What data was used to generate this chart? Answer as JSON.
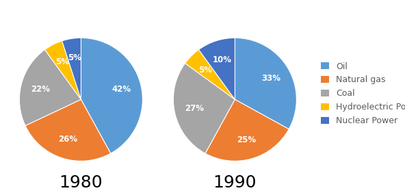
{
  "chart1_year": "1980",
  "chart2_year": "1990",
  "categories": [
    "Oil",
    "Natural gas",
    "Coal",
    "Hydroelectric Power",
    "Nuclear Power"
  ],
  "values_1980": [
    42,
    26,
    22,
    5,
    5
  ],
  "values_1990": [
    33,
    25,
    27,
    5,
    10
  ],
  "colors": [
    "#5B9BD5",
    "#ED7D31",
    "#A5A5A5",
    "#FFC000",
    "#4472C4"
  ],
  "background_color": "#ffffff",
  "legend_entries": [
    "Oil",
    "Natural gas",
    "Coal",
    "Hydroelectric Power",
    "Nuclear Power"
  ],
  "legend_colors": [
    "#5B9BD5",
    "#ED7D31",
    "#A5A5A5",
    "#FFC000",
    "#4472C4"
  ],
  "startangle_1980": 90,
  "startangle_1990": 90,
  "year_fontsize": 18,
  "pct_fontsize": 8.5,
  "legend_fontsize": 9
}
